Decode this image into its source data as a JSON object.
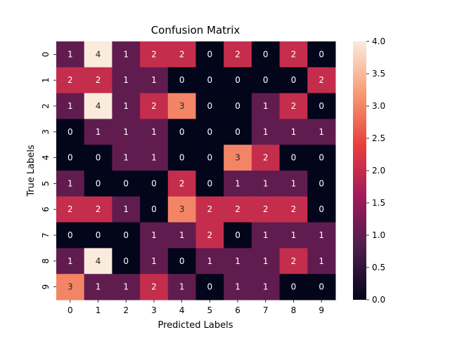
{
  "chart_data": {
    "type": "heatmap",
    "title": "Confusion Matrix",
    "xlabel": "Predicted Labels",
    "ylabel": "True Labels",
    "x_categories": [
      "0",
      "1",
      "2",
      "3",
      "4",
      "5",
      "6",
      "7",
      "8",
      "9"
    ],
    "y_categories": [
      "0",
      "1",
      "2",
      "3",
      "4",
      "5",
      "6",
      "7",
      "8",
      "9"
    ],
    "values": [
      [
        1,
        4,
        1,
        2,
        2,
        0,
        2,
        0,
        2,
        0
      ],
      [
        2,
        2,
        1,
        1,
        0,
        0,
        0,
        0,
        0,
        2
      ],
      [
        1,
        4,
        1,
        2,
        3,
        0,
        0,
        1,
        2,
        0
      ],
      [
        0,
        1,
        1,
        1,
        0,
        0,
        0,
        1,
        1,
        1
      ],
      [
        0,
        0,
        1,
        1,
        0,
        0,
        3,
        2,
        0,
        0
      ],
      [
        1,
        0,
        0,
        0,
        2,
        0,
        1,
        1,
        1,
        0
      ],
      [
        2,
        2,
        1,
        0,
        3,
        2,
        2,
        2,
        2,
        0
      ],
      [
        0,
        0,
        0,
        1,
        1,
        2,
        0,
        1,
        1,
        1
      ],
      [
        1,
        4,
        0,
        1,
        0,
        1,
        1,
        1,
        2,
        1
      ],
      [
        3,
        1,
        1,
        2,
        1,
        0,
        1,
        1,
        0,
        0
      ]
    ],
    "colorbar": {
      "range": [
        0,
        4
      ],
      "ticks": [
        "0.0",
        "0.5",
        "1.0",
        "1.5",
        "2.0",
        "2.5",
        "3.0",
        "3.5",
        "4.0"
      ],
      "colormap": "rocket",
      "colors": [
        "#03051a",
        "#4c1d4b",
        "#a11a5b",
        "#e83f3f",
        "#f69c73",
        "#faebdd"
      ]
    },
    "annotate": true
  }
}
